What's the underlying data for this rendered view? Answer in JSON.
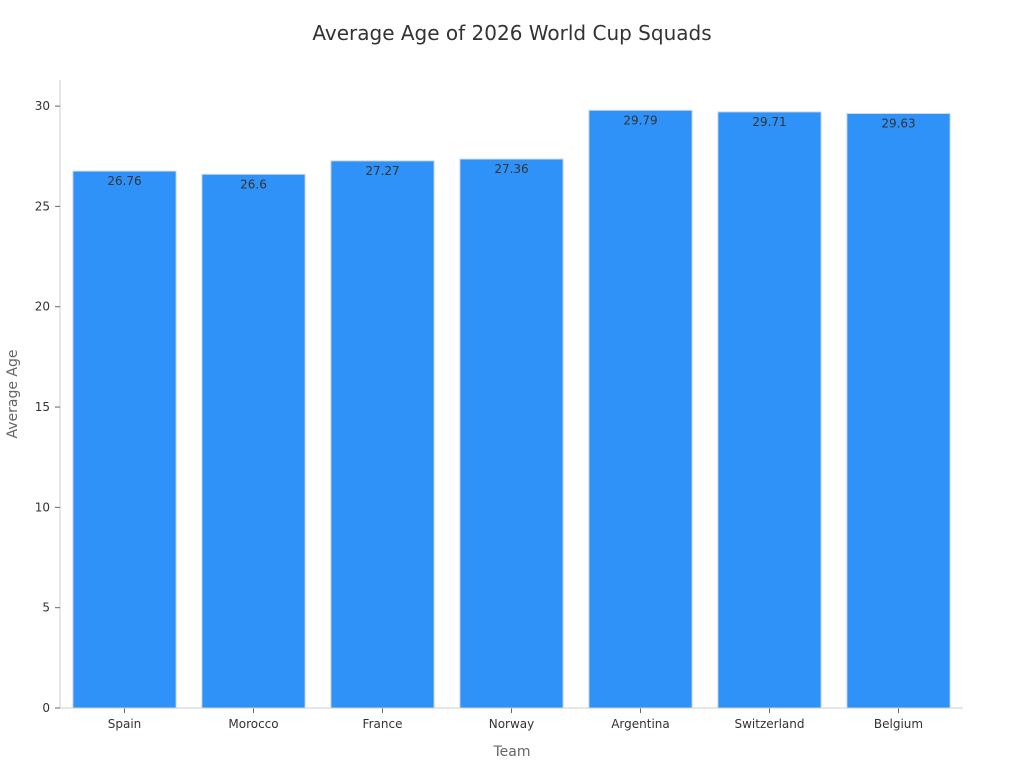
{
  "chart_data": {
    "type": "bar",
    "title": "Average Age of 2026 World Cup Squads",
    "xlabel": "Team",
    "ylabel": "Average Age",
    "categories": [
      "Spain",
      "Morocco",
      "France",
      "Norway",
      "Argentina",
      "Switzerland",
      "Belgium"
    ],
    "values": [
      26.76,
      26.6,
      27.27,
      27.36,
      29.79,
      29.71,
      29.63
    ],
    "value_labels": [
      "26.76",
      "26.6",
      "27.27",
      "27.36",
      "29.79",
      "29.71",
      "29.63"
    ],
    "ylim": [
      0,
      31.3
    ],
    "yticks": [
      0,
      5,
      10,
      15,
      20,
      25,
      30
    ],
    "ytick_labels": [
      "0",
      "5",
      "10",
      "15",
      "20",
      "25",
      "30"
    ],
    "grid": false,
    "legend": "none",
    "bar_color": "#2f92f9"
  }
}
